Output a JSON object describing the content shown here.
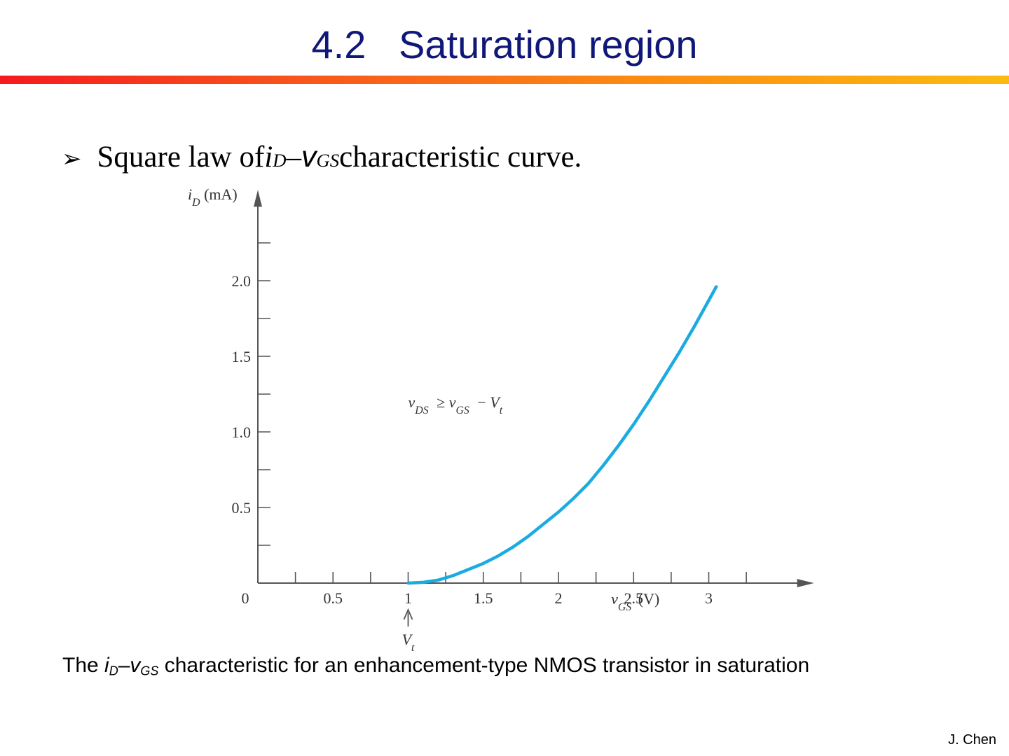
{
  "slide": {
    "title": "4.2   Saturation region",
    "bullet": {
      "lead": "Square law of ",
      "i": "i",
      "i_sub": "D",
      "dash": "–",
      "v": "v",
      "v_sub": "GS",
      "tail": " characteristic curve."
    },
    "caption": {
      "lead": "The ",
      "i": "i",
      "i_sub": "D",
      "dash": "–",
      "v": "v",
      "v_sub": "GS",
      "tail": " characteristic for an enhancement-type NMOS transistor in saturation"
    },
    "footer": "J. Chen",
    "accent_color": "#0f1778",
    "bar_colors": [
      "#f51a1e",
      "#fb8e12",
      "#fcbb10"
    ]
  },
  "chart_data": {
    "type": "line",
    "xlabel_var": "v",
    "xlabel_sub": "GS",
    "xlabel_unit": "(V)",
    "ylabel_var": "i",
    "ylabel_sub": "D",
    "ylabel_unit": "(mA)",
    "xlim": [
      0,
      3.7
    ],
    "ylim": [
      0,
      2.6
    ],
    "x_ticks": [
      "0",
      "0.5",
      "1",
      "1.5",
      "2",
      "2.5",
      "3"
    ],
    "y_ticks": [
      "0.5",
      "1.0",
      "1.5",
      "2.0"
    ],
    "series": [
      {
        "color": "#1aabe0",
        "x": [
          1.0,
          1.1,
          1.2,
          1.3,
          1.4,
          1.5,
          1.6,
          1.7,
          1.8,
          1.9,
          2.0,
          2.1,
          2.2,
          2.3,
          2.4,
          2.5,
          2.6,
          2.7,
          2.8,
          2.9,
          3.0,
          3.05
        ],
        "y": [
          0.0,
          0.005,
          0.02,
          0.05,
          0.09,
          0.13,
          0.18,
          0.24,
          0.31,
          0.39,
          0.47,
          0.56,
          0.66,
          0.78,
          0.91,
          1.05,
          1.2,
          1.36,
          1.52,
          1.69,
          1.87,
          1.96
        ]
      }
    ],
    "annotation": {
      "v": "v",
      "v_sub": "DS",
      "ge": "≥",
      "v2": "v",
      "v2_sub": "GS",
      "minus": "−",
      "V": "V",
      "V_sub": "t"
    },
    "marker": {
      "x": 1,
      "label": "V",
      "label_sub": "t"
    }
  }
}
